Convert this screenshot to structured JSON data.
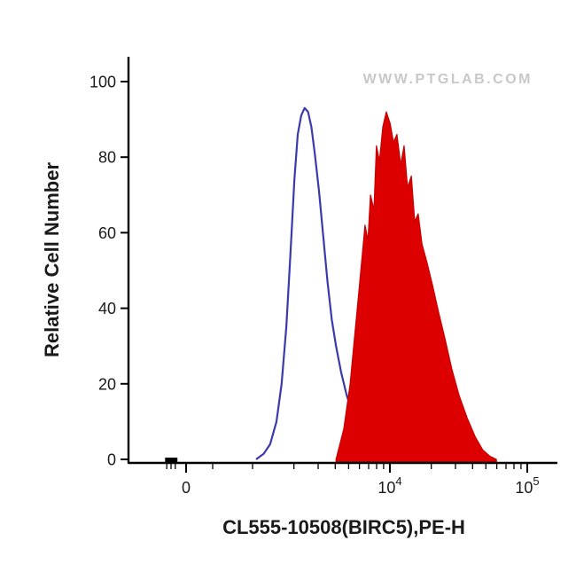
{
  "watermark": "WWW.PTGLAB.COM",
  "chart_data": {
    "type": "area",
    "title": "",
    "xlabel": "CL555-10508(BIRC5),PE-H",
    "ylabel": "Relative Cell Number",
    "x_scale": "biexponential",
    "ylim": [
      0,
      100
    ],
    "grid": false,
    "legend": "none",
    "y_ticks": [
      0,
      20,
      40,
      60,
      80,
      100
    ],
    "x_ticks": [
      {
        "base": "0",
        "exp": "",
        "t": 0.1354
      },
      {
        "base": "10",
        "exp": "4",
        "t": 0.6146
      },
      {
        "base": "10",
        "exp": "5",
        "t": 0.9375
      }
    ],
    "x_minor_ticks_t": [
      0.09,
      0.1,
      0.11,
      0.198,
      0.2917,
      0.3889,
      0.4458,
      0.4861,
      0.5174,
      0.543,
      0.5646,
      0.5833,
      0.5998,
      0.7118,
      0.7687,
      0.809,
      0.8403,
      0.8659,
      0.8875,
      0.9062,
      0.9227
    ],
    "zero_marker": {
      "t0": 0.086,
      "t1": 0.115,
      "height": 5
    },
    "series": [
      {
        "name": "control-open-histogram",
        "color": "#3a3aad",
        "fill": "none",
        "peak_value": 93,
        "points": [
          [
            0.3,
            0
          ],
          [
            0.318,
            1.5
          ],
          [
            0.333,
            4
          ],
          [
            0.348,
            10
          ],
          [
            0.36,
            20
          ],
          [
            0.371,
            35
          ],
          [
            0.381,
            55
          ],
          [
            0.39,
            74
          ],
          [
            0.398,
            86
          ],
          [
            0.406,
            91
          ],
          [
            0.414,
            93
          ],
          [
            0.422,
            92
          ],
          [
            0.43,
            88
          ],
          [
            0.438,
            81
          ],
          [
            0.448,
            71
          ],
          [
            0.458,
            59
          ],
          [
            0.468,
            47
          ],
          [
            0.478,
            37
          ],
          [
            0.488,
            30
          ],
          [
            0.5,
            23
          ],
          [
            0.513,
            17
          ],
          [
            0.527,
            12
          ],
          [
            0.542,
            8.5
          ],
          [
            0.558,
            6
          ],
          [
            0.575,
            4
          ],
          [
            0.595,
            2.5
          ],
          [
            0.615,
            1.5
          ],
          [
            0.635,
            0.8
          ],
          [
            0.655,
            0
          ]
        ]
      },
      {
        "name": "birc5-pe-filled-histogram",
        "color": "#c80000",
        "fill": "#dd0000",
        "peak_value": 92,
        "points": [
          [
            0.488,
            0
          ],
          [
            0.506,
            8
          ],
          [
            0.521,
            20
          ],
          [
            0.542,
            45
          ],
          [
            0.556,
            62
          ],
          [
            0.563,
            58
          ],
          [
            0.569,
            70
          ],
          [
            0.577,
            66
          ],
          [
            0.583,
            83
          ],
          [
            0.59,
            79
          ],
          [
            0.598,
            88
          ],
          [
            0.606,
            92
          ],
          [
            0.615,
            89
          ],
          [
            0.623,
            84
          ],
          [
            0.631,
            86
          ],
          [
            0.64,
            78
          ],
          [
            0.648,
            83
          ],
          [
            0.656,
            72
          ],
          [
            0.665,
            75
          ],
          [
            0.673,
            63
          ],
          [
            0.681,
            65
          ],
          [
            0.69,
            57
          ],
          [
            0.702,
            52
          ],
          [
            0.715,
            46
          ],
          [
            0.729,
            39
          ],
          [
            0.744,
            32
          ],
          [
            0.76,
            24
          ],
          [
            0.777,
            17
          ],
          [
            0.796,
            11
          ],
          [
            0.815,
            6
          ],
          [
            0.833,
            2.5
          ],
          [
            0.85,
            0.8
          ],
          [
            0.865,
            0
          ]
        ]
      }
    ]
  }
}
